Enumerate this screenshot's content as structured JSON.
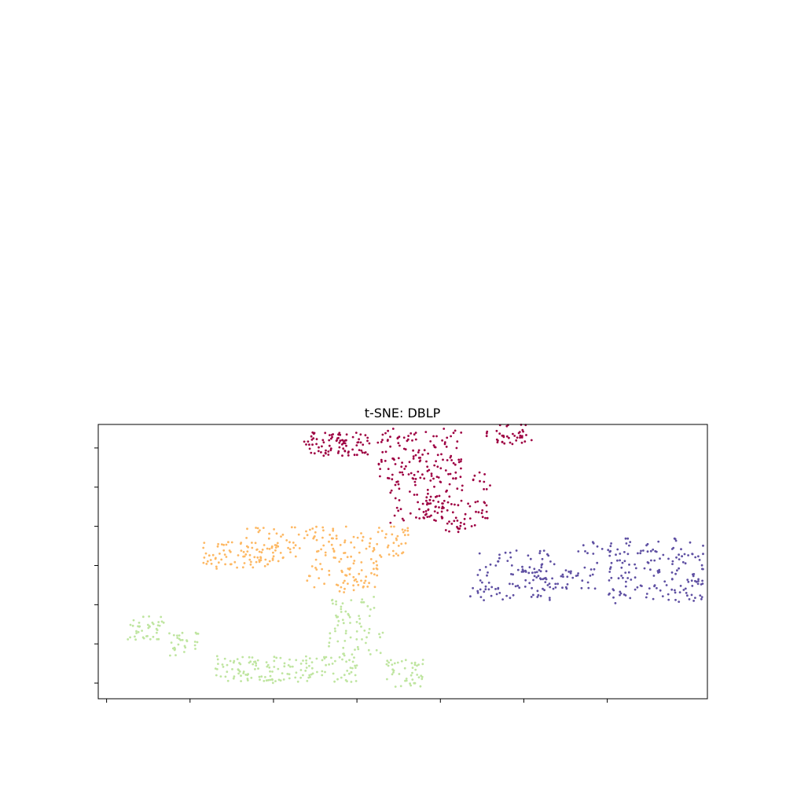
{
  "chart_data": {
    "type": "scatter",
    "title": "t-SNE: DBLP",
    "xlabel": "",
    "ylabel": "",
    "x_ticks_labeled": false,
    "y_ticks_labeled": false,
    "xlim": [
      -12,
      134
    ],
    "ylim": [
      -74,
      -4
    ],
    "grid": false,
    "legend": "none",
    "marker_size": "small",
    "colors": [
      "#9e0142",
      "#fdb863",
      "#5e4fa2",
      "#bfe5a0"
    ],
    "clusters": [
      {
        "color_index": 0,
        "blobs": [
          {
            "x": [
              37,
              53
            ],
            "y": [
              -12,
              -6
            ],
            "n": 90
          },
          {
            "x": [
              55,
              75
            ],
            "y": [
              -18,
              -5
            ],
            "n": 120
          },
          {
            "x": [
              58,
              82
            ],
            "y": [
              -30,
              -16
            ],
            "n": 110
          },
          {
            "x": [
              81,
              92
            ],
            "y": [
              -9,
              -4
            ],
            "n": 40
          },
          {
            "x": [
              66,
              71
            ],
            "y": [
              -28,
              -22
            ],
            "n": 25
          },
          {
            "x": [
              71,
              76
            ],
            "y": [
              -32,
              -29
            ],
            "n": 12
          }
        ]
      },
      {
        "color_index": 1,
        "blobs": [
          {
            "x": [
              13,
              30
            ],
            "y": [
              -41,
              -34
            ],
            "n": 70
          },
          {
            "x": [
              23,
              60
            ],
            "y": [
              -39,
              -30
            ],
            "n": 130
          },
          {
            "x": [
              38,
              55
            ],
            "y": [
              -47,
              -39
            ],
            "n": 60
          },
          {
            "x": [
              58,
              63
            ],
            "y": [
              -37,
              -30
            ],
            "n": 15
          }
        ]
      },
      {
        "color_index": 2,
        "blobs": [
          {
            "x": [
              77,
              97
            ],
            "y": [
              -49,
              -36
            ],
            "n": 80
          },
          {
            "x": [
              88,
              108
            ],
            "y": [
              -46,
              -39
            ],
            "n": 60
          },
          {
            "x": [
              110,
              133
            ],
            "y": [
              -50,
              -33
            ],
            "n": 160
          },
          {
            "x": [
              103,
              111
            ],
            "y": [
              -37,
              -33
            ],
            "n": 10
          }
        ]
      },
      {
        "color_index": 3,
        "blobs": [
          {
            "x": [
              -5,
              4
            ],
            "y": [
              -59,
              -53
            ],
            "n": 40
          },
          {
            "x": [
              5,
              12
            ],
            "y": [
              -63,
              -57
            ],
            "n": 30
          },
          {
            "x": [
              16,
              50
            ],
            "y": [
              -70,
              -63
            ],
            "n": 150
          },
          {
            "x": [
              43,
              57
            ],
            "y": [
              -63,
              -48
            ],
            "n": 70
          },
          {
            "x": [
              57,
              66
            ],
            "y": [
              -71,
              -64
            ],
            "n": 45
          }
        ]
      }
    ]
  }
}
